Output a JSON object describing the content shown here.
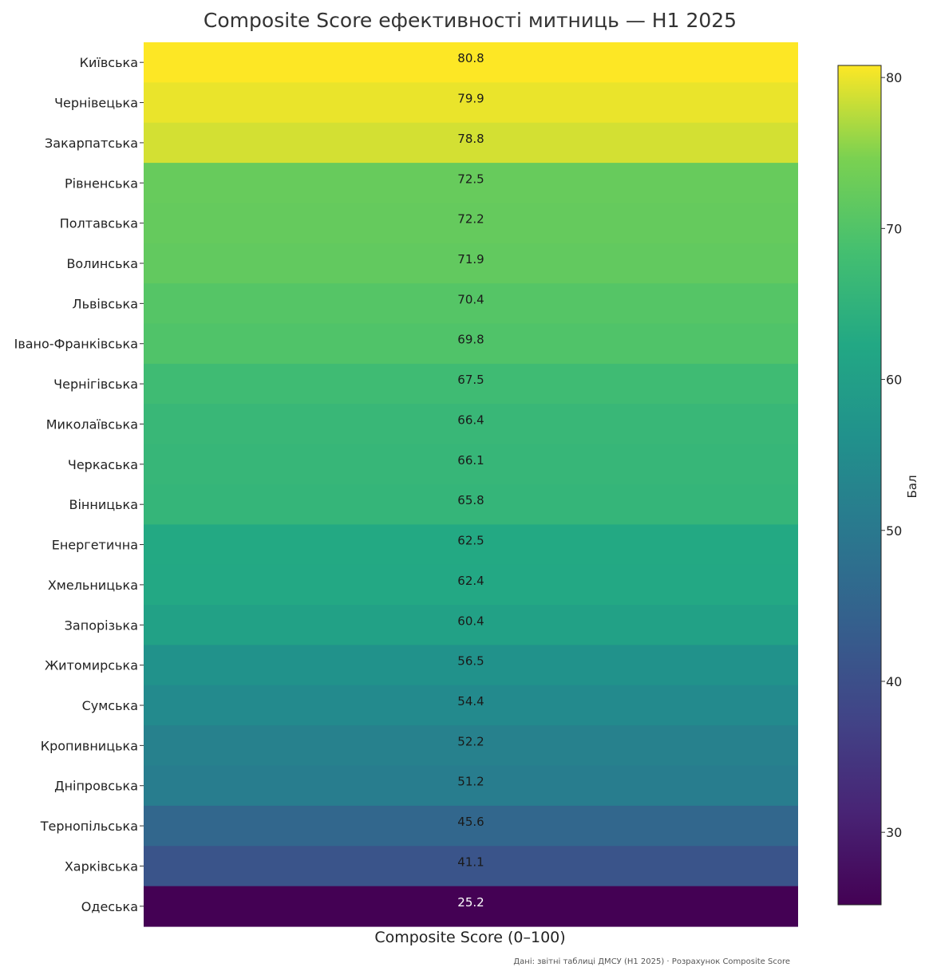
{
  "chart_data": {
    "type": "heatmap",
    "title": "Composite Score ефективності митниць — H1 2025",
    "xlabel": "Composite Score (0–100)",
    "colorbar_label": "Бал",
    "colorbar_ticks": [
      30,
      40,
      50,
      60,
      70,
      80
    ],
    "colorbar_range": [
      25.2,
      80.8
    ],
    "colormap": "viridis",
    "categories": [
      "Київська",
      "Чернівецька",
      "Закарпатська",
      "Рівненська",
      "Полтавська",
      "Волинська",
      "Львівська",
      "Івано-Франківська",
      "Чернігівська",
      "Миколаївська",
      "Черкаська",
      "Вінницька",
      "Енергетична",
      "Хмельницька",
      "Запорізька",
      "Житомирська",
      "Сумська",
      "Кропивницька",
      "Дніпровська",
      "Тернопільська",
      "Харківська",
      "Одеська"
    ],
    "values": [
      80.8,
      79.9,
      78.8,
      72.5,
      72.2,
      71.9,
      70.4,
      69.8,
      67.5,
      66.4,
      66.1,
      65.8,
      62.5,
      62.4,
      60.4,
      56.5,
      54.4,
      52.2,
      51.2,
      45.6,
      41.1,
      25.2
    ],
    "value_labels": [
      "80.8",
      "79.9",
      "78.8",
      "72.5",
      "72.2",
      "71.9",
      "70.4",
      "69.8",
      "67.5",
      "66.4",
      "66.1",
      "65.8",
      "62.5",
      "62.4",
      "60.4",
      "56.5",
      "54.4",
      "52.2",
      "51.2",
      "45.6",
      "41.1",
      "25.2"
    ],
    "footnote": "Дані: звітні таблиці ДМСУ (H1 2025) · Розрахунок Composite Score"
  }
}
